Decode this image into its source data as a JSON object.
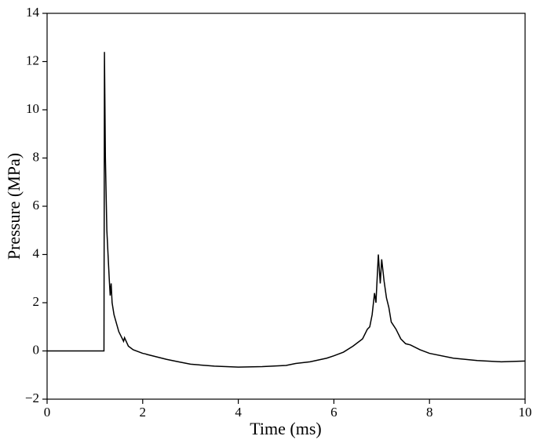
{
  "chart_data": {
    "type": "line",
    "x_label": "Time (ms)",
    "y_label": "Pressure (MPa)",
    "xlim": [
      0,
      10
    ],
    "ylim": [
      -2,
      14
    ],
    "xticks": [
      0,
      2,
      4,
      6,
      8,
      10
    ],
    "yticks": [
      {
        "value": -2,
        "label": "−2"
      },
      0,
      2,
      4,
      6,
      8,
      10,
      12,
      14
    ],
    "series": [
      {
        "color": "#000000",
        "x": [
          0,
          1.19,
          1.2,
          1.22,
          1.25,
          1.3,
          1.32,
          1.34,
          1.36,
          1.4,
          1.5,
          1.6,
          1.62,
          1.7,
          1.8,
          2.0,
          2.05,
          2.1,
          2.5,
          2.75,
          3,
          3.5,
          4,
          4.5,
          5,
          5.2,
          5.5,
          5.85,
          6,
          6.2,
          6.4,
          6.6,
          6.7,
          6.75,
          6.8,
          6.85,
          6.88,
          6.93,
          6.97,
          7.0,
          7.05,
          7.1,
          7.15,
          7.2,
          7.3,
          7.4,
          7.5,
          7.6,
          7.8,
          8,
          8.5,
          9,
          9.5,
          10
        ],
        "values": [
          0,
          0,
          12.4,
          8,
          5,
          3,
          2.3,
          2.8,
          2.0,
          1.5,
          0.8,
          0.4,
          0.55,
          0.2,
          0.05,
          -0.1,
          -0.12,
          -0.15,
          -0.35,
          -0.45,
          -0.55,
          -0.63,
          -0.67,
          -0.65,
          -0.6,
          -0.52,
          -0.45,
          -0.3,
          -0.2,
          -0.05,
          0.2,
          0.5,
          0.9,
          1.0,
          1.5,
          2.4,
          2.0,
          4.0,
          2.8,
          3.8,
          2.9,
          2.2,
          1.8,
          1.2,
          0.9,
          0.5,
          0.3,
          0.25,
          0.05,
          -0.1,
          -0.3,
          -0.4,
          -0.45,
          -0.42
        ]
      }
    ]
  }
}
